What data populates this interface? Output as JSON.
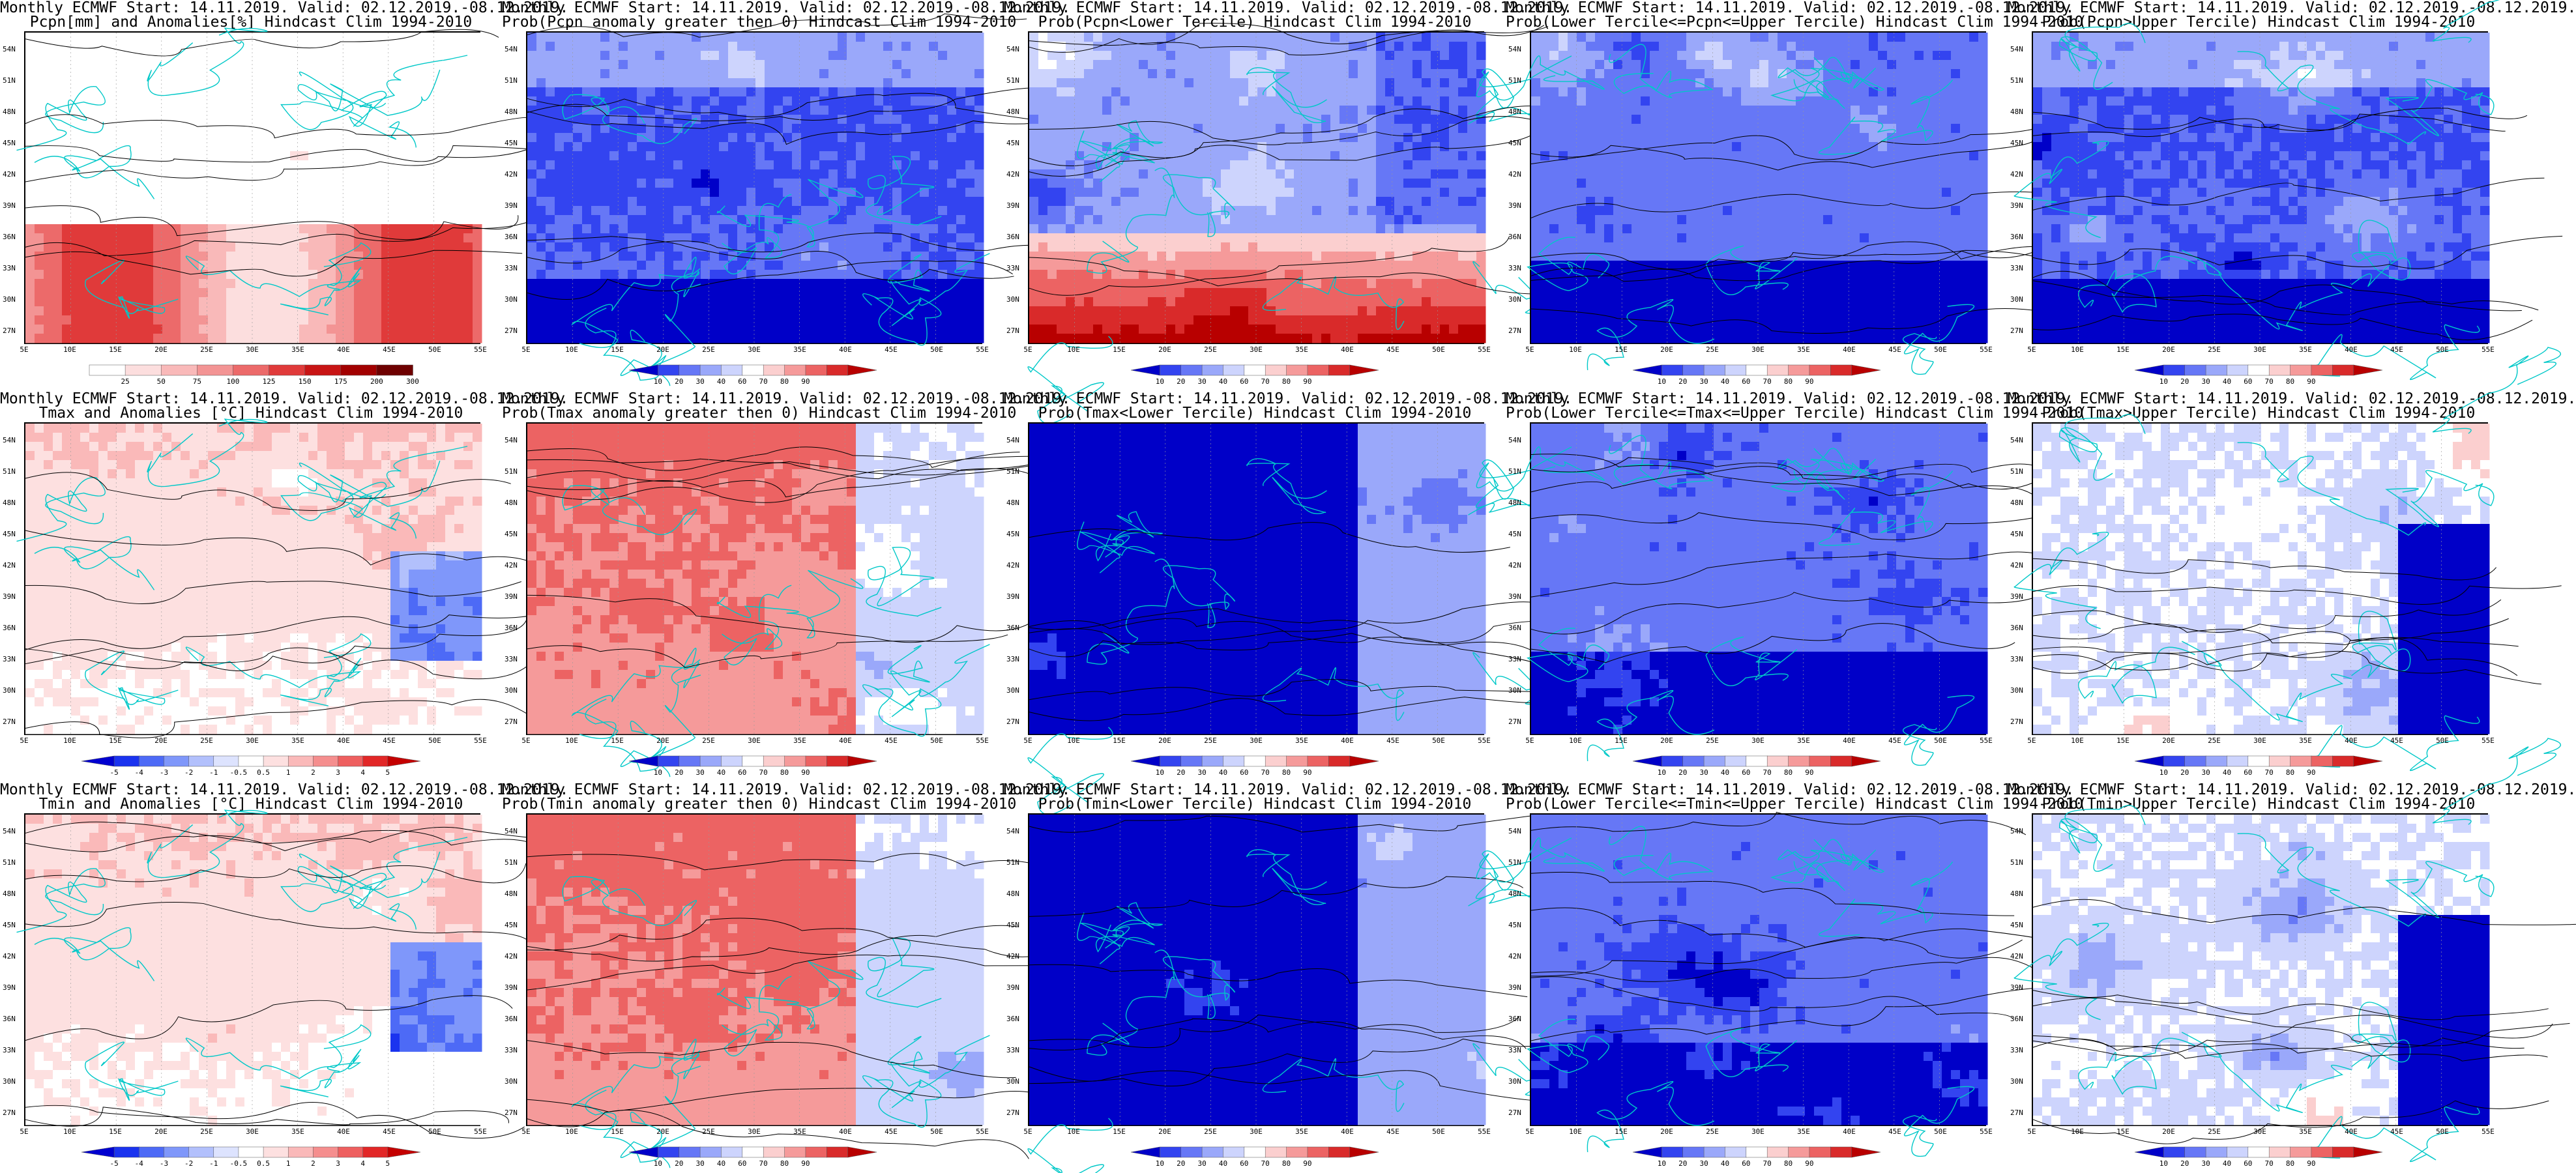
{
  "colors": {
    "precip_scale": [
      "#ffffff",
      "#fcdede",
      "#f9b9b9",
      "#f39494",
      "#ec6a6a",
      "#e03a3a",
      "#c81414",
      "#a20000",
      "#6e0000"
    ],
    "anomaly_scale": [
      "#0000d0",
      "#1a33ef",
      "#4d6af6",
      "#7f97fa",
      "#b2c0fc",
      "#dde3fe",
      "#ffffff",
      "#fde0e0",
      "#fab9b9",
      "#f58e8e",
      "#ee5f5f",
      "#e22727",
      "#c40000"
    ],
    "prob_scale": [
      "#0000c8",
      "#3344f0",
      "#6677f6",
      "#9aa8fa",
      "#cdd4fd",
      "#ffffff",
      "#fbcfcf",
      "#f59a9a",
      "#ec6363",
      "#d92a2a",
      "#b80000"
    ],
    "contour": "#000000",
    "coastline": "#00c8c8"
  },
  "axes": {
    "lat_labels": [
      "54N",
      "51N",
      "48N",
      "45N",
      "42N",
      "39N",
      "36N",
      "33N",
      "30N",
      "27N"
    ],
    "lon_labels": [
      "5E",
      "10E",
      "15E",
      "20E",
      "25E",
      "30E",
      "35E",
      "40E",
      "45E",
      "50E",
      "55E"
    ]
  },
  "colorbars": {
    "precip": [
      "25",
      "50",
      "75",
      "100",
      "125",
      "150",
      "175",
      "200",
      "300"
    ],
    "anomaly": [
      "-5",
      "-4",
      "-3",
      "-2",
      "-1",
      "-0.5",
      "0.5",
      "1",
      "2",
      "3",
      "4",
      "5"
    ],
    "prob": [
      "10",
      "20",
      "30",
      "40",
      "60",
      "70",
      "80",
      "90"
    ]
  },
  "panels": [
    {
      "line1": "Monthly ECMWF Start: 14.11.2019. Valid: 02.12.2019.-08.12.2019.",
      "line2": "Pcpn[mm] and Anomalies[%] Hindcast Clim 1994-2010",
      "bar": "precip",
      "field": "precip"
    },
    {
      "line1": "Monthly ECMWF Start: 14.11.2019. Valid: 02.12.2019.-08.12.2019.",
      "line2": "Prob(Pcpn anomaly greater then 0) Hindcast Clim 1994-2010",
      "bar": "prob",
      "field": "wetblue"
    },
    {
      "line1": "Monthly ECMWF Start: 14.11.2019. Valid: 02.12.2019.-08.12.2019.",
      "line2": "Prob(Pcpn<Lower Tercile) Hindcast Clim 1994-2010",
      "bar": "prob",
      "field": "drysouth"
    },
    {
      "line1": "Monthly ECMWF Start: 14.11.2019. Valid: 02.12.2019.-08.12.2019.",
      "line2": "Prob(Lower Tercile<=Pcpn<=Upper Tercile) Hindcast Clim 1994-2010",
      "bar": "prob",
      "field": "midblue"
    },
    {
      "line1": "Monthly ECMWF Start: 14.11.2019. Valid: 02.12.2019.-08.12.2019.",
      "line2": "Prob(Pcpn>Upper Tercile) Hindcast Clim 1994-2010",
      "bar": "prob",
      "field": "wetblue"
    },
    {
      "line1": "Monthly ECMWF Start: 14.11.2019. Valid: 02.12.2019.-08.12.2019.",
      "line2": "Tmax and Anomalies [°C] Hindcast Clim 1994-2010",
      "bar": "anomaly",
      "field": "warm"
    },
    {
      "line1": "Monthly ECMWF Start: 14.11.2019. Valid: 02.12.2019.-08.12.2019.",
      "line2": "Prob(Tmax anomaly greater then 0) Hindcast Clim 1994-2010",
      "bar": "prob",
      "field": "hot"
    },
    {
      "line1": "Monthly ECMWF Start: 14.11.2019. Valid: 02.12.2019.-08.12.2019.",
      "line2": "Prob(Tmax<Lower Tercile) Hindcast Clim 1994-2010",
      "bar": "prob",
      "field": "deepblue"
    },
    {
      "line1": "Monthly ECMWF Start: 14.11.2019. Valid: 02.12.2019.-08.12.2019.",
      "line2": "Prob(Lower Tercile<=Tmax<=Upper Tercile) Hindcast Clim 1994-2010",
      "bar": "prob",
      "field": "midblue"
    },
    {
      "line1": "Monthly ECMWF Start: 14.11.2019. Valid: 02.12.2019.-08.12.2019.",
      "line2": "Prob(Tmax>Upper Tercile) Hindcast Clim 1994-2010",
      "bar": "prob",
      "field": "upper"
    },
    {
      "line1": "Monthly ECMWF Start: 14.11.2019. Valid: 02.12.2019.-08.12.2019.",
      "line2": "Tmin and Anomalies [°C] Hindcast Clim 1994-2010",
      "bar": "anomaly",
      "field": "warm"
    },
    {
      "line1": "Monthly ECMWF Start: 14.11.2019. Valid: 02.12.2019.-08.12.2019.",
      "line2": "Prob(Tmin anomaly greater then 0) Hindcast Clim 1994-2010",
      "bar": "prob",
      "field": "hot"
    },
    {
      "line1": "Monthly ECMWF Start: 14.11.2019. Valid: 02.12.2019.-08.12.2019.",
      "line2": "Prob(Tmin<Lower Tercile) Hindcast Clim 1994-2010",
      "bar": "prob",
      "field": "deepblue"
    },
    {
      "line1": "Monthly ECMWF Start: 14.11.2019. Valid: 02.12.2019.-08.12.2019.",
      "line2": "Prob(Lower Tercile<=Tmin<=Upper Tercile) Hindcast Clim 1994-2010",
      "bar": "prob",
      "field": "midblue"
    },
    {
      "line1": "Monthly ECMWF Start: 14.11.2019. Valid: 02.12.2019.-08.12.2019.",
      "line2": "Prob(Tmin>Upper Tercile) Hindcast Clim 1994-2010",
      "bar": "prob",
      "field": "upper"
    }
  ]
}
